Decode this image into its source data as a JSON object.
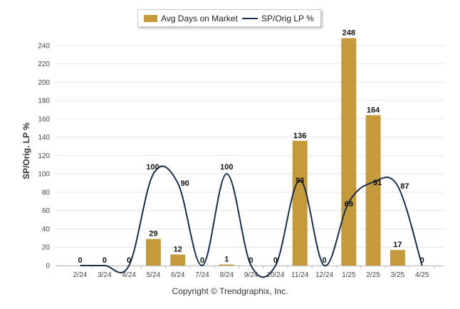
{
  "chart_data": {
    "type": "bar",
    "categories": [
      "2/24",
      "3/24",
      "4/24",
      "5/24",
      "6/24",
      "7/24",
      "8/24",
      "9/24",
      "10/24",
      "11/24",
      "12/24",
      "1/25",
      "2/25",
      "3/25",
      "4/25"
    ],
    "series": [
      {
        "name": "Avg Days on Market",
        "type": "bar",
        "color": "#c49a3c",
        "values": [
          0,
          0,
          0,
          29,
          12,
          0,
          1,
          0,
          0,
          136,
          0,
          248,
          164,
          17,
          0
        ]
      },
      {
        "name": "SP/Orig LP %",
        "type": "line",
        "color": "#1a2e4a",
        "values": [
          0,
          0,
          0,
          100,
          90,
          0,
          100,
          0,
          0,
          93,
          0,
          69,
          91,
          87,
          0
        ]
      }
    ],
    "bar_labels": [
      "0",
      "0",
      "0",
      "29",
      "12",
      "0",
      "1",
      "0",
      "0",
      "136",
      "0",
      "248",
      "164",
      "17",
      "0"
    ],
    "line_labels": [
      "",
      "",
      "",
      "100",
      "90",
      "",
      "100",
      "",
      "",
      "93",
      "",
      "69",
      "91",
      "87",
      ""
    ],
    "ylabel": "SP/Orig. LP %",
    "ylim": [
      0,
      250
    ],
    "yticks": [
      0,
      20,
      40,
      60,
      80,
      100,
      120,
      140,
      160,
      180,
      200,
      220,
      240
    ],
    "grid": true,
    "legend_position": "top-center"
  },
  "legend": {
    "bar_label": "Avg Days on Market",
    "line_label": "SP/Orig LP %"
  },
  "copyright": "Copyright © Trendgraphix, Inc."
}
